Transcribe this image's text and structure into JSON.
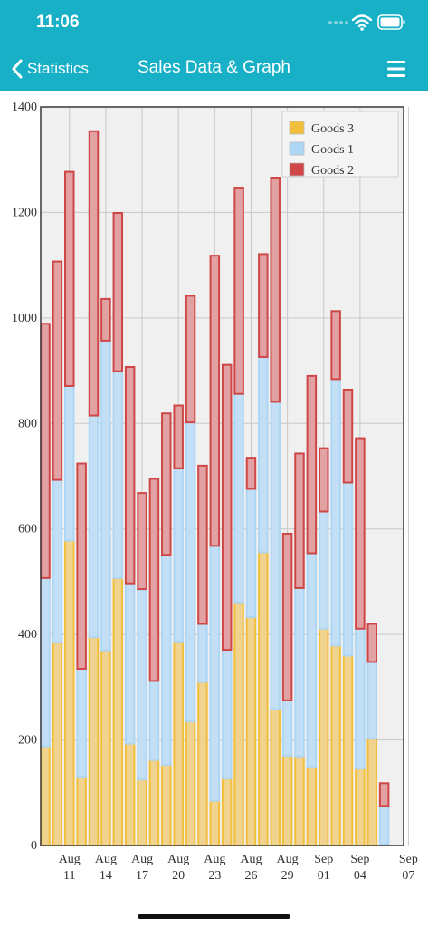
{
  "status_bar": {
    "time": "11:06"
  },
  "nav": {
    "back_label": "Statistics",
    "title": "Sales Data & Graph"
  },
  "icons": {
    "back": "chevron-left-icon",
    "menu": "hamburger-menu-icon",
    "wifi": "wifi-icon",
    "battery": "battery-icon",
    "signal": "cellular-signal-icon"
  },
  "colors": {
    "nav_background": "#17b0c7",
    "goods3_fill": "#f0d38e",
    "goods3_stroke": "#f2bf3c",
    "goods1_fill": "#c3dff5",
    "goods1_stroke": "#aed6f5",
    "goods2_fill": "#e2a2a4",
    "goods2_stroke": "#cf4646",
    "plot_background": "#f0f0f0"
  },
  "chart_data": {
    "type": "bar",
    "stacked": true,
    "x": [
      "Aug 09",
      "Aug 10",
      "Aug 11",
      "Aug 12",
      "Aug 13",
      "Aug 14",
      "Aug 15",
      "Aug 16",
      "Aug 17",
      "Aug 18",
      "Aug 19",
      "Aug 20",
      "Aug 21",
      "Aug 22",
      "Aug 23",
      "Aug 24",
      "Aug 25",
      "Aug 26",
      "Aug 27",
      "Aug 28",
      "Aug 29",
      "Aug 30",
      "Aug 31",
      "Sep 01",
      "Sep 02",
      "Sep 03",
      "Sep 04",
      "Sep 05",
      "Sep 06"
    ],
    "series": [
      {
        "name": "Goods 3",
        "values": [
          188,
          385,
          578,
          130,
          395,
          370,
          507,
          193,
          125,
          162,
          153,
          387,
          235,
          310,
          85,
          127,
          461,
          433,
          556,
          259,
          170,
          169,
          148,
          411,
          379,
          360,
          146,
          203,
          3
        ]
      },
      {
        "name": "Goods 1",
        "values": [
          319,
          308,
          293,
          205,
          420,
          587,
          392,
          304,
          361,
          150,
          398,
          328,
          567,
          110,
          483,
          244,
          395,
          243,
          370,
          582,
          105,
          319,
          406,
          222,
          505,
          328,
          265,
          145,
          72
        ]
      },
      {
        "name": "Goods 2",
        "values": [
          482,
          414,
          406,
          389,
          539,
          79,
          300,
          410,
          182,
          383,
          268,
          119,
          240,
          300,
          550,
          540,
          391,
          59,
          195,
          425,
          316,
          255,
          336,
          120,
          129,
          176,
          361,
          72,
          43
        ]
      }
    ],
    "x_tick_labels": [
      {
        "date": "Aug 11",
        "line1": "Aug",
        "line2": "11"
      },
      {
        "date": "Aug 14",
        "line1": "Aug",
        "line2": "14"
      },
      {
        "date": "Aug 17",
        "line1": "Aug",
        "line2": "17"
      },
      {
        "date": "Aug 20",
        "line1": "Aug",
        "line2": "20"
      },
      {
        "date": "Aug 23",
        "line1": "Aug",
        "line2": "23"
      },
      {
        "date": "Aug 26",
        "line1": "Aug",
        "line2": "26"
      },
      {
        "date": "Aug 29",
        "line1": "Aug",
        "line2": "29"
      },
      {
        "date": "Sep 01",
        "line1": "Sep",
        "line2": "01"
      },
      {
        "date": "Sep 04",
        "line1": "Sep",
        "line2": "04"
      },
      {
        "date": "Sep 07",
        "line1": "Sep",
        "line2": "07"
      }
    ],
    "y_ticks": [
      0,
      200,
      400,
      600,
      800,
      1000,
      1200,
      1400
    ],
    "ylim": [
      0,
      1400
    ],
    "grid": true,
    "legend": {
      "placement": "top-right",
      "entries": [
        "Goods 3",
        "Goods 1",
        "Goods 2"
      ]
    },
    "title": "",
    "xlabel": "",
    "ylabel": ""
  }
}
